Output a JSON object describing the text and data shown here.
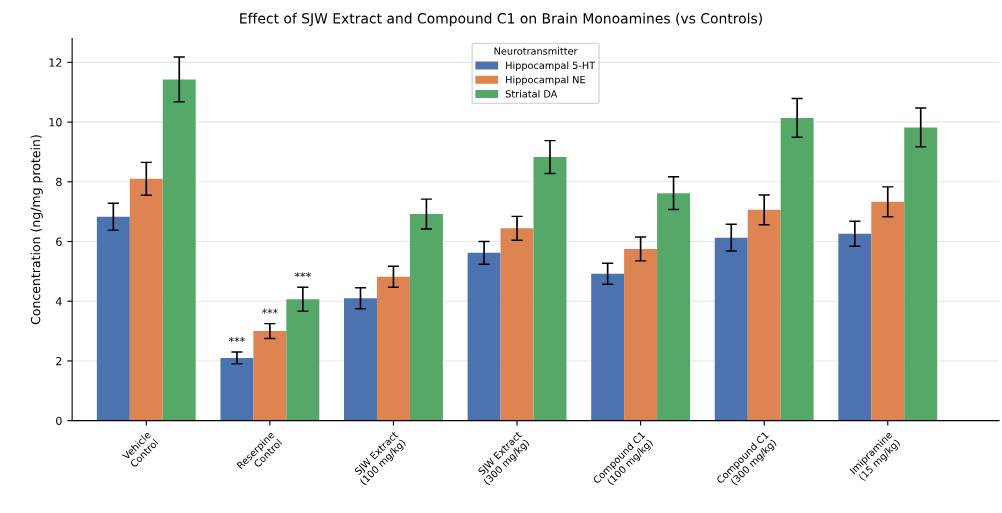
{
  "chart_data": {
    "type": "bar",
    "title": "Effect of SJW Extract and Compound C1 on Brain Monoamines (vs Controls)",
    "ylabel": "Concentration (ng/mg protein)",
    "legend_title": "Neurotransmitter",
    "categories": [
      "Vehicle\nControl",
      "Reserpine\nControl",
      "SJW Extract\n(100 mg/kg)",
      "SJW Extract\n(300 mg/kg)",
      "Compound C1\n(100 mg/kg)",
      "Compound C1\n(300 mg/kg)",
      "Imipramine\n(15 mg/kg)"
    ],
    "series": [
      {
        "name": "Hippocampal 5-HT",
        "color": "#4c72b0",
        "values": [
          6.83,
          2.1,
          4.1,
          5.62,
          4.92,
          6.13,
          6.26
        ],
        "errors": [
          0.45,
          0.2,
          0.35,
          0.38,
          0.35,
          0.45,
          0.42
        ],
        "value_labels": [
          null,
          "***",
          null,
          null,
          null,
          null,
          null
        ]
      },
      {
        "name": "Hippocampal NE",
        "color": "#dd8452",
        "values": [
          8.1,
          3.0,
          4.82,
          6.44,
          5.75,
          7.06,
          7.33
        ],
        "errors": [
          0.55,
          0.25,
          0.35,
          0.4,
          0.4,
          0.5,
          0.5
        ],
        "value_labels": [
          null,
          "***",
          null,
          null,
          null,
          null,
          null
        ]
      },
      {
        "name": "Striatal DA",
        "color": "#55a868",
        "values": [
          11.43,
          4.07,
          6.92,
          8.83,
          7.62,
          10.14,
          9.82
        ],
        "errors": [
          0.75,
          0.4,
          0.5,
          0.55,
          0.55,
          0.65,
          0.65
        ],
        "value_labels": [
          null,
          "***",
          null,
          null,
          null,
          null,
          null
        ]
      }
    ],
    "ylim": [
      0,
      12.8
    ],
    "yticks": [
      0,
      2,
      4,
      6,
      8,
      10,
      12
    ],
    "grid": "y",
    "legend": "top"
  }
}
